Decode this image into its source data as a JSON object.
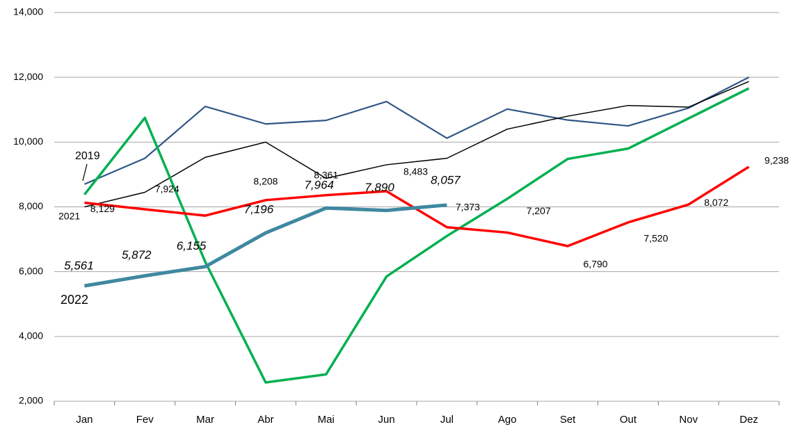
{
  "chart_data": {
    "type": "line",
    "categories": [
      "Jan",
      "Fev",
      "Mar",
      "Abr",
      "Mai",
      "Jun",
      "Jul",
      "Ago",
      "Set",
      "Out",
      "Nov",
      "Dez"
    ],
    "series": [
      {
        "name": "2019",
        "color": "#2f5686",
        "values": [
          8700,
          9500,
          11100,
          10560,
          10670,
          11250,
          10120,
          11020,
          10680,
          10500,
          11050,
          12000
        ]
      },
      {
        "color": "#000000",
        "values": [
          8000,
          8450,
          9530,
          10000,
          8880,
          9300,
          9500,
          10400,
          10800,
          11130,
          11080,
          11870
        ]
      },
      {
        "color": "#00b050",
        "values": [
          8380,
          10750,
          6300,
          2580,
          2830,
          5850,
          7100,
          8250,
          9480,
          9800,
          10730,
          11660
        ]
      },
      {
        "name": "2021",
        "color": "#ff0000",
        "values": [
          8129,
          7924,
          7730,
          8208,
          8361,
          8483,
          7373,
          7207,
          6790,
          7520,
          8072,
          9238
        ],
        "value_labels": [
          "8,129",
          "7,924",
          null,
          "8,208",
          "8,361",
          "8,483",
          "7,373",
          "7,207",
          "6,790",
          "7,520",
          "8,072",
          "9,238"
        ]
      },
      {
        "name": "2022",
        "color": "#3f88a0",
        "values": [
          5561,
          5872,
          6155,
          7196,
          7964,
          7890,
          8057,
          null,
          null,
          null,
          null,
          null
        ],
        "value_labels": [
          "5,561",
          "5,872",
          "6,155",
          "7,196",
          "7,964",
          "7,890",
          "8,057",
          null,
          null,
          null,
          null,
          null
        ]
      }
    ],
    "ylim": [
      2000,
      14000
    ],
    "yticks": [
      {
        "value": 2000,
        "label": "2,000"
      },
      {
        "value": 4000,
        "label": "4,000"
      },
      {
        "value": 6000,
        "label": "6,000"
      },
      {
        "value": 8000,
        "label": "8,000"
      },
      {
        "value": 10000,
        "label": "10,000"
      },
      {
        "value": 12000,
        "label": "12,000"
      },
      {
        "value": 14000,
        "label": "14,000"
      }
    ],
    "grid": true
  }
}
